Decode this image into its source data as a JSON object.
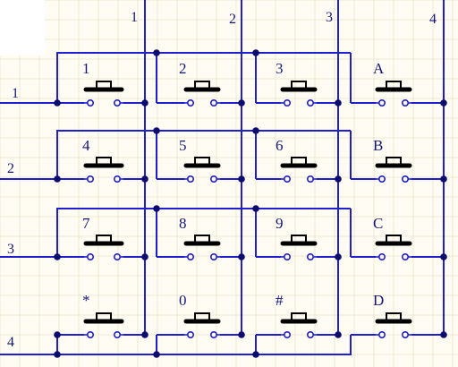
{
  "diagram": {
    "column_net_labels": [
      "1",
      "2",
      "3",
      "4"
    ],
    "row_net_labels": [
      "1",
      "2",
      "3",
      "4"
    ],
    "key_labels": [
      [
        "1",
        "2",
        "3",
        "A"
      ],
      [
        "4",
        "5",
        "6",
        "B"
      ],
      [
        "7",
        "8",
        "9",
        "C"
      ],
      [
        "*",
        "0",
        "#",
        "D"
      ]
    ]
  },
  "colors": {
    "wire": "#1f1fd0",
    "junction": "#0d0d6e",
    "background": "#fffdf3",
    "grid": "#efe7d2",
    "label": "#15157a"
  }
}
